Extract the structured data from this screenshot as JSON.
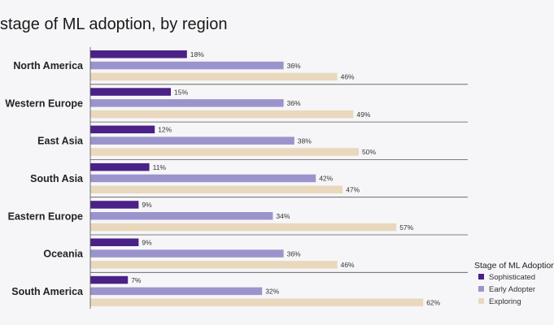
{
  "chart_data": {
    "type": "bar",
    "orientation": "horizontal",
    "title": "stage of ML adoption, by region",
    "categories": [
      "North America",
      "Western Europe",
      "East Asia",
      "South Asia",
      "Eastern Europe",
      "Oceania",
      "South America"
    ],
    "series": [
      {
        "name": "Sophisticated",
        "color": "#4a2187",
        "values": [
          18,
          15,
          12,
          11,
          9,
          9,
          7
        ]
      },
      {
        "name": "Early Adopter",
        "color": "#9b94cc",
        "values": [
          36,
          36,
          38,
          42,
          34,
          36,
          32
        ]
      },
      {
        "name": "Exploring",
        "color": "#e9d8bd",
        "values": [
          46,
          49,
          50,
          47,
          57,
          46,
          62
        ]
      }
    ],
    "value_suffix": "%",
    "xlim": [
      0,
      100
    ],
    "grid": false,
    "legend": {
      "title": "Stage of ML Adoption",
      "position": "bottom-right"
    }
  }
}
